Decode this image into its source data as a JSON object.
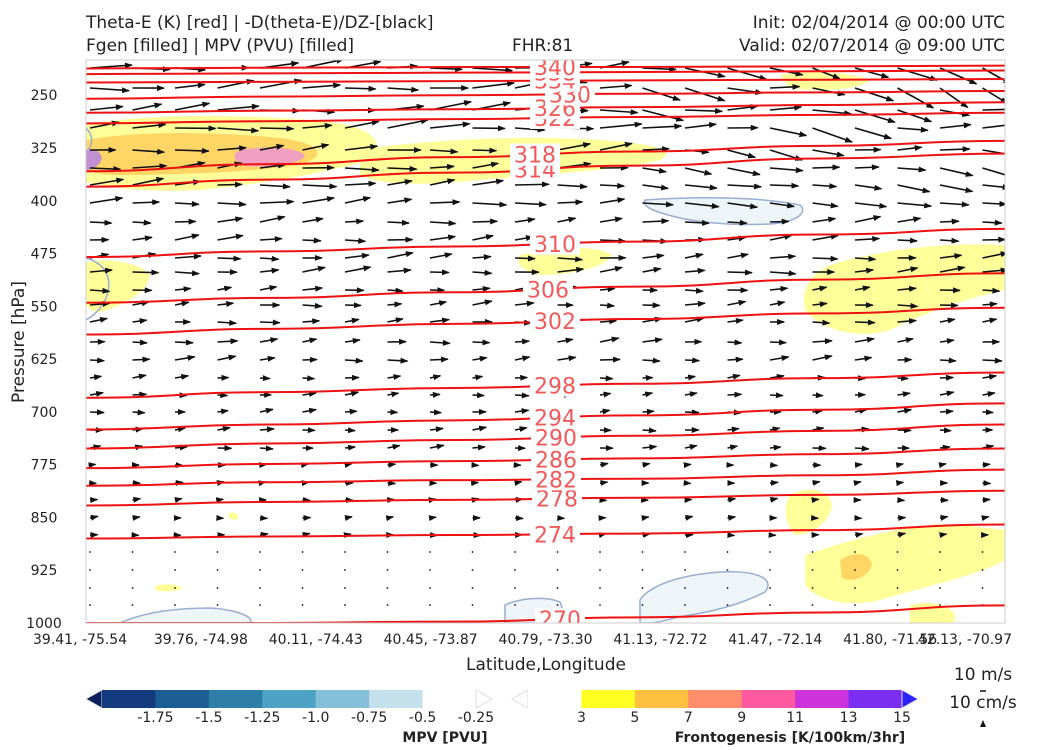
{
  "header": {
    "left_line1": "Theta-E (K) [red] | -D(theta-E)/DZ-[black]",
    "left_line2": "Fgen [filled] | MPV (PVU) [filled]",
    "center": "FHR:81",
    "right_line1": "Init: 02/04/2014 @ 00:00 UTC",
    "right_line2": "Valid: 02/07/2014 @ 09:00 UTC"
  },
  "colors": {
    "theta_e": "#ee1111",
    "theta_e_label": "#f05a5a",
    "vector": "#111111",
    "mpv_outline": "#9aaed0",
    "mpv_fill": "#eef5f8",
    "fgen_3": "#ffff99",
    "fgen_5": "#ffd666",
    "fgen_7": "#ffa070",
    "fgen_pink": "#f0a0c0"
  },
  "chart_data": {
    "type": "cross-section",
    "xlabel": "Latitude,Longitude",
    "ylabel": "Pressure [hPa]",
    "y_axis": {
      "ticks": [
        250,
        325,
        400,
        475,
        550,
        625,
        700,
        775,
        850,
        925,
        1000
      ],
      "range": [
        200,
        1000
      ],
      "inverted": true
    },
    "x_ticks": [
      "39.41, -75.54",
      "39.76, -74.98",
      "40.11, -74.43",
      "40.45, -73.87",
      "40.79, -73.30",
      "41.13, -72.72",
      "41.47, -72.14",
      "41.80, -71.56",
      "42.13, -70.97"
    ],
    "theta_e_contours": [
      {
        "label": "270",
        "p": [
          1000,
          1000,
          998,
          992,
          985,
          975
        ]
      },
      {
        "label": "274",
        "p": [
          880,
          877,
          875,
          873,
          868,
          860
        ]
      },
      {
        "label": "278",
        "p": [
          833,
          828,
          825,
          822,
          818,
          812
        ]
      },
      {
        "label": "282",
        "p": [
          805,
          800,
          797,
          795,
          790,
          782
        ]
      },
      {
        "label": "286",
        "p": [
          780,
          774,
          770,
          766,
          760,
          752
        ]
      },
      {
        "label": "290",
        "p": [
          752,
          745,
          740,
          734,
          727,
          718
        ]
      },
      {
        "label": "294",
        "p": [
          725,
          718,
          712,
          705,
          697,
          688
        ]
      },
      {
        "label": "298",
        "p": [
          680,
          672,
          666,
          660,
          652,
          644
        ]
      },
      {
        "label": "302",
        "p": [
          590,
          582,
          575,
          568,
          560,
          552
        ]
      },
      {
        "label": "306",
        "p": [
          545,
          538,
          530,
          522,
          512,
          503
        ]
      },
      {
        "label": "310",
        "p": [
          480,
          472,
          465,
          458,
          448,
          440
        ]
      },
      {
        "label": "314",
        "p": [
          380,
          370,
          360,
          350,
          340,
          333
        ]
      },
      {
        "label": "318",
        "p": [
          358,
          348,
          338,
          330,
          322,
          315
        ]
      },
      {
        "label": "322",
        "p": [
          290,
          287,
          284,
          281,
          278,
          275
        ]
      },
      {
        "label": "326",
        "p": [
          275,
          272,
          270,
          267,
          264,
          260
        ]
      },
      {
        "label": "330",
        "p": [
          255,
          252,
          250,
          248,
          246,
          244
        ]
      },
      {
        "label": "334",
        "p": [
          232,
          231,
          230,
          229,
          228,
          227
        ]
      },
      {
        "label": "338",
        "p": [
          220,
          219,
          218,
          217,
          216,
          215
        ]
      },
      {
        "label": "340",
        "p": [
          212,
          211,
          210,
          210,
          209,
          208
        ]
      }
    ],
    "mpv_legend": {
      "title": "MPV [PVU]",
      "ticks": [
        "-1.75",
        "-1.5",
        "-1.25",
        "-1.0",
        "-0.75",
        "-0.5",
        "-0.25"
      ],
      "colors": [
        "#0b1e5e",
        "#133a7c",
        "#1c5e94",
        "#2e7fa8",
        "#4ea3c4",
        "#86c0d8",
        "#c4e0ea",
        "#ffffff"
      ]
    },
    "fgen_legend": {
      "title": "Frontogenesis [K/100km/3hr]",
      "ticks": [
        "3",
        "5",
        "7",
        "9",
        "11",
        "13",
        "15"
      ],
      "colors": [
        "#ffffff",
        "#ffff22",
        "#ffc040",
        "#ff8c6a",
        "#ff5aa0",
        "#cc33dd",
        "#7a2ef0",
        "#2a22ff"
      ]
    },
    "reference_vectors": [
      "10 m/s",
      "10 cm/s"
    ]
  }
}
